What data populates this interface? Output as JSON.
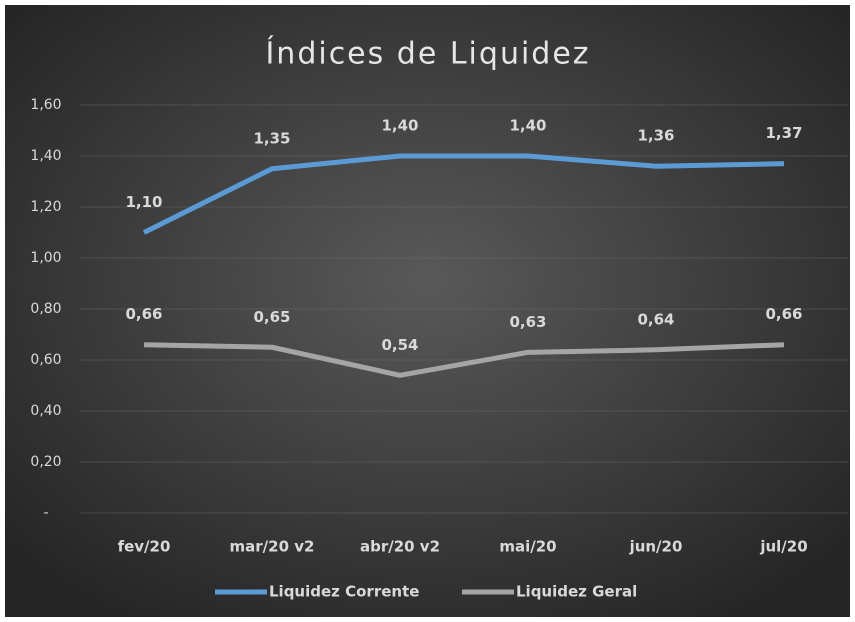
{
  "chart_data": {
    "type": "line",
    "title": "Índices de Liquidez",
    "categories": [
      "fev/20",
      "mar/20 v2",
      "abr/20 v2",
      "mai/20",
      "jun/20",
      "jul/20"
    ],
    "series": [
      {
        "name": "Liquidez Corrente",
        "color": "#5b9bd5",
        "values": [
          1.1,
          1.35,
          1.4,
          1.4,
          1.36,
          1.37
        ],
        "value_labels": [
          "1,10",
          "1,35",
          "1,40",
          "1,40",
          "1,36",
          "1,37"
        ]
      },
      {
        "name": "Liquidez Geral",
        "color": "#a5a5a5",
        "values": [
          0.66,
          0.65,
          0.54,
          0.63,
          0.64,
          0.66
        ],
        "value_labels": [
          "0,66",
          "0,65",
          "0,54",
          "0,63",
          "0,64",
          "0,66"
        ]
      }
    ],
    "ylim": [
      0,
      1.6
    ],
    "yticks": [
      {
        "value": 0,
        "label": "-"
      },
      {
        "value": 0.2,
        "label": "0,20"
      },
      {
        "value": 0.4,
        "label": "0,40"
      },
      {
        "value": 0.6,
        "label": "0,60"
      },
      {
        "value": 0.8,
        "label": "0,80"
      },
      {
        "value": 1.0,
        "label": "1,00"
      },
      {
        "value": 1.2,
        "label": "1,20"
      },
      {
        "value": 1.4,
        "label": "1,40"
      },
      {
        "value": 1.6,
        "label": "1,60"
      }
    ],
    "grid": true,
    "legend": "bottom"
  }
}
